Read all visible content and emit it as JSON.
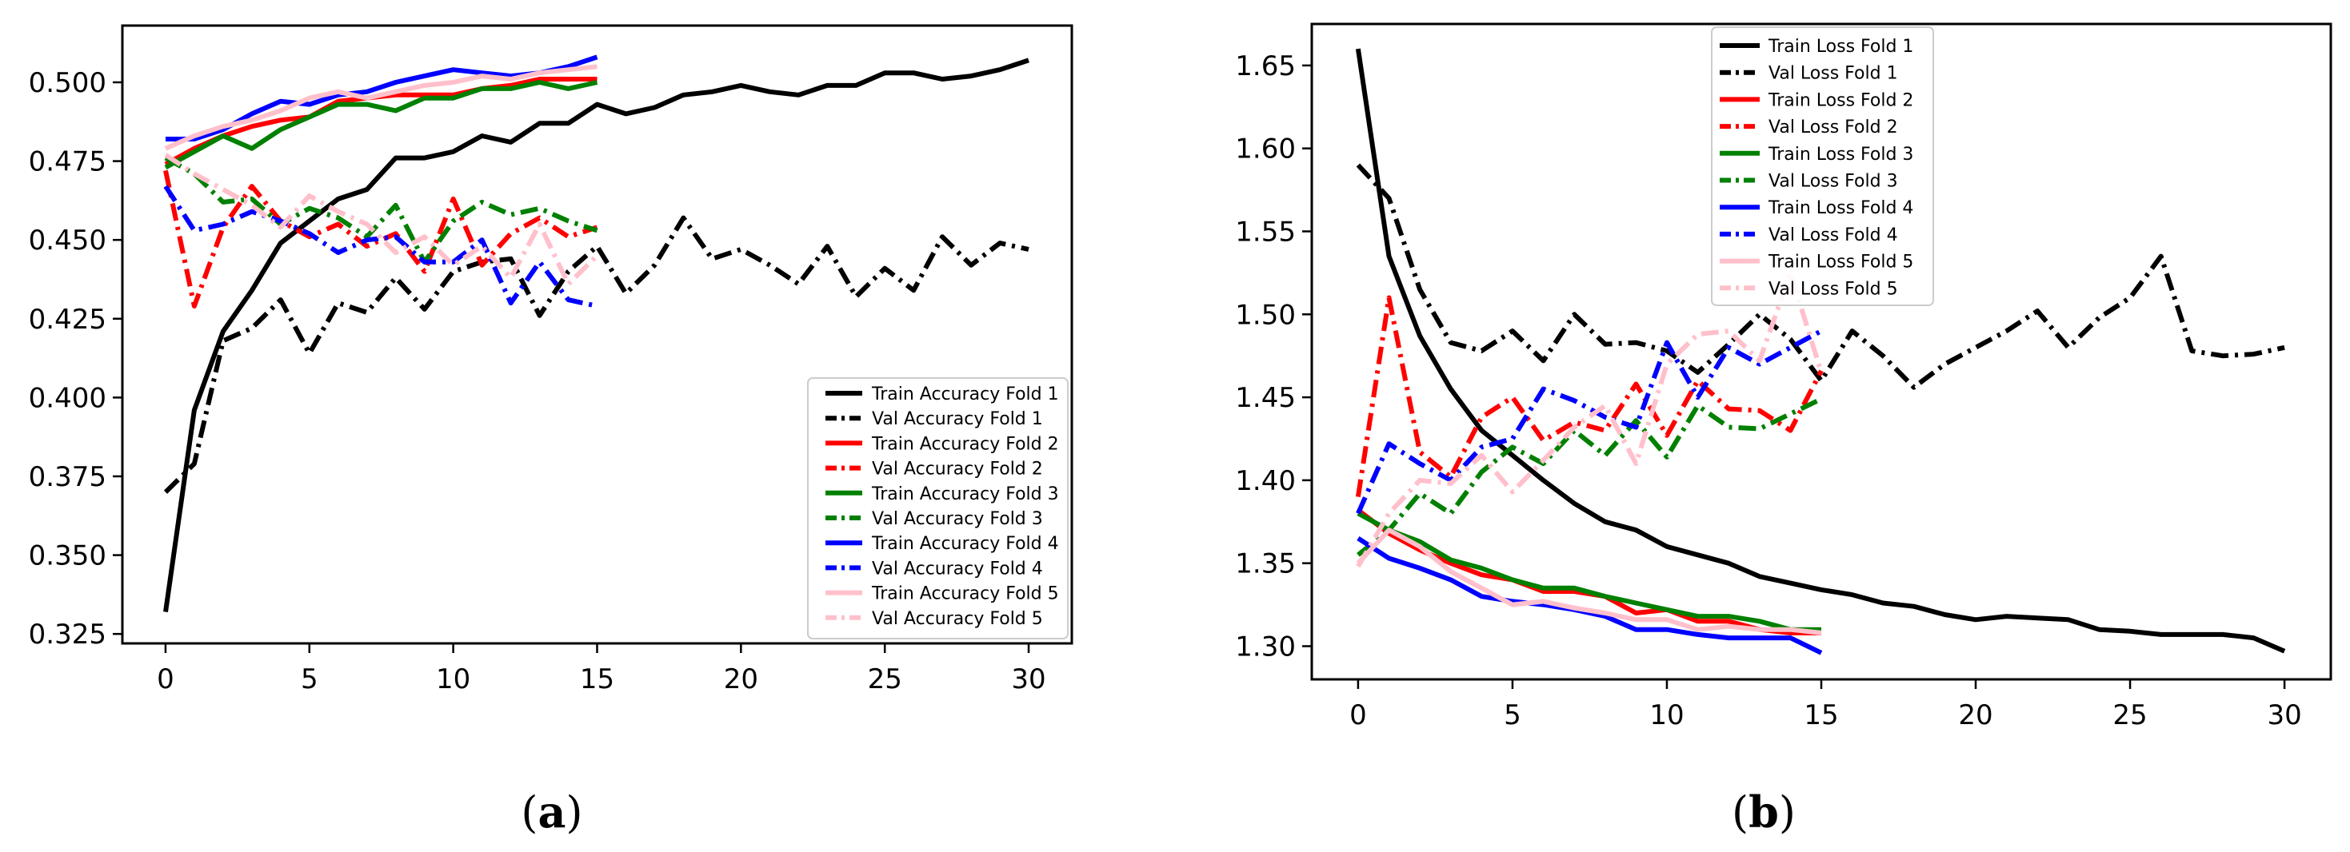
{
  "chart_data": [
    {
      "type": "line",
      "panel": "a",
      "caption_letter": "a",
      "caption_open": "(",
      "caption_close": ")",
      "title": "",
      "xlabel": "",
      "ylabel": "",
      "xlim": [
        -1.5,
        31.5
      ],
      "ylim": [
        0.322,
        0.518
      ],
      "xticks": [
        0,
        5,
        10,
        15,
        20,
        25,
        30
      ],
      "xtick_labels": [
        "0",
        "5",
        "10",
        "15",
        "20",
        "25",
        "30"
      ],
      "yticks": [
        0.325,
        0.35,
        0.375,
        0.4,
        0.425,
        0.45,
        0.475,
        0.5
      ],
      "ytick_labels": [
        "0.325",
        "0.350",
        "0.375",
        "0.400",
        "0.425",
        "0.450",
        "0.475",
        "0.500"
      ],
      "legend_position": "lower-right",
      "series": [
        {
          "name": "Train Accuracy Fold 1",
          "color": "#000000",
          "style": "solid",
          "x": [
            0,
            1,
            2,
            3,
            4,
            5,
            6,
            7,
            8,
            9,
            10,
            11,
            12,
            13,
            14,
            15,
            16,
            17,
            18,
            19,
            20,
            21,
            22,
            23,
            24,
            25,
            26,
            27,
            28,
            29,
            30
          ],
          "values": [
            0.332,
            0.396,
            0.421,
            0.434,
            0.449,
            0.456,
            0.463,
            0.466,
            0.476,
            0.476,
            0.478,
            0.483,
            0.481,
            0.487,
            0.487,
            0.493,
            0.49,
            0.492,
            0.496,
            0.497,
            0.499,
            0.497,
            0.496,
            0.499,
            0.499,
            0.503,
            0.503,
            0.501,
            0.502,
            0.504,
            0.507
          ]
        },
        {
          "name": "Val Accuracy Fold 1",
          "color": "#000000",
          "style": "dashdot",
          "x": [
            0,
            1,
            2,
            3,
            4,
            5,
            6,
            7,
            8,
            9,
            10,
            11,
            12,
            13,
            14,
            15,
            16,
            17,
            18,
            19,
            20,
            21,
            22,
            23,
            24,
            25,
            26,
            27,
            28,
            29,
            30
          ],
          "values": [
            0.37,
            0.379,
            0.418,
            0.422,
            0.431,
            0.414,
            0.43,
            0.427,
            0.438,
            0.428,
            0.44,
            0.443,
            0.444,
            0.426,
            0.44,
            0.448,
            0.433,
            0.442,
            0.457,
            0.444,
            0.447,
            0.442,
            0.436,
            0.448,
            0.432,
            0.441,
            0.434,
            0.451,
            0.442,
            0.449,
            0.447
          ]
        },
        {
          "name": "Train Accuracy Fold 2",
          "color": "#ff0000",
          "style": "solid",
          "x": [
            0,
            1,
            2,
            3,
            4,
            5,
            6,
            7,
            8,
            9,
            10,
            11,
            12,
            13,
            14,
            15
          ],
          "values": [
            0.474,
            0.479,
            0.483,
            0.486,
            0.488,
            0.489,
            0.494,
            0.495,
            0.496,
            0.496,
            0.496,
            0.498,
            0.499,
            0.501,
            0.501,
            0.501
          ]
        },
        {
          "name": "Val Accuracy Fold 2",
          "color": "#ff0000",
          "style": "dashdot",
          "x": [
            0,
            1,
            2,
            3,
            4,
            5,
            6,
            7,
            8,
            9,
            10,
            11,
            12,
            13,
            14,
            15
          ],
          "values": [
            0.472,
            0.429,
            0.454,
            0.467,
            0.456,
            0.451,
            0.455,
            0.448,
            0.452,
            0.44,
            0.463,
            0.442,
            0.452,
            0.457,
            0.451,
            0.454
          ]
        },
        {
          "name": "Train Accuracy Fold 3",
          "color": "#008000",
          "style": "solid",
          "x": [
            0,
            1,
            2,
            3,
            4,
            5,
            6,
            7,
            8,
            9,
            10,
            11,
            12,
            13,
            14,
            15
          ],
          "values": [
            0.473,
            0.478,
            0.483,
            0.479,
            0.485,
            0.489,
            0.493,
            0.493,
            0.491,
            0.495,
            0.495,
            0.498,
            0.498,
            0.5,
            0.498,
            0.5
          ]
        },
        {
          "name": "Val Accuracy Fold 3",
          "color": "#008000",
          "style": "dashdot",
          "x": [
            0,
            1,
            2,
            3,
            4,
            5,
            6,
            7,
            8,
            9,
            10,
            11,
            12,
            13,
            14,
            15
          ],
          "values": [
            0.476,
            0.471,
            0.462,
            0.463,
            0.455,
            0.46,
            0.457,
            0.451,
            0.461,
            0.443,
            0.456,
            0.462,
            0.458,
            0.46,
            0.456,
            0.453
          ]
        },
        {
          "name": "Train Accuracy Fold 4",
          "color": "#0000ff",
          "style": "solid",
          "x": [
            0,
            1,
            2,
            3,
            4,
            5,
            6,
            7,
            8,
            9,
            10,
            11,
            12,
            13,
            14,
            15
          ],
          "values": [
            0.482,
            0.482,
            0.485,
            0.49,
            0.494,
            0.493,
            0.496,
            0.497,
            0.5,
            0.502,
            0.504,
            0.503,
            0.502,
            0.503,
            0.505,
            0.508
          ]
        },
        {
          "name": "Val Accuracy Fold 4",
          "color": "#0000ff",
          "style": "dashdot",
          "x": [
            0,
            1,
            2,
            3,
            4,
            5,
            6,
            7,
            8,
            9,
            10,
            11,
            12,
            13,
            14,
            15
          ],
          "values": [
            0.467,
            0.453,
            0.455,
            0.459,
            0.456,
            0.452,
            0.446,
            0.45,
            0.451,
            0.443,
            0.443,
            0.45,
            0.43,
            0.443,
            0.431,
            0.429
          ]
        },
        {
          "name": "Train Accuracy Fold 5",
          "color": "#ffc0cb",
          "style": "solid",
          "x": [
            0,
            1,
            2,
            3,
            4,
            5,
            6,
            7,
            8,
            9,
            10,
            11,
            12,
            13,
            14,
            15
          ],
          "values": [
            0.479,
            0.483,
            0.486,
            0.488,
            0.491,
            0.495,
            0.497,
            0.495,
            0.497,
            0.499,
            0.5,
            0.502,
            0.501,
            0.503,
            0.504,
            0.505
          ]
        },
        {
          "name": "Val Accuracy Fold 5",
          "color": "#ffc0cb",
          "style": "dashdot",
          "x": [
            0,
            1,
            2,
            3,
            4,
            5,
            6,
            7,
            8,
            9,
            10,
            11,
            12,
            13,
            14,
            15
          ],
          "values": [
            0.477,
            0.471,
            0.466,
            0.461,
            0.454,
            0.464,
            0.459,
            0.455,
            0.446,
            0.451,
            0.442,
            0.448,
            0.438,
            0.455,
            0.436,
            0.445
          ]
        }
      ]
    },
    {
      "type": "line",
      "panel": "b",
      "caption_letter": "b",
      "caption_open": "(",
      "caption_close": ")",
      "title": "",
      "xlabel": "",
      "ylabel": "",
      "xlim": [
        -1.5,
        31.5
      ],
      "ylim": [
        1.28,
        1.675
      ],
      "xticks": [
        0,
        5,
        10,
        15,
        20,
        25,
        30
      ],
      "xtick_labels": [
        "0",
        "5",
        "10",
        "15",
        "20",
        "25",
        "30"
      ],
      "yticks": [
        1.3,
        1.35,
        1.4,
        1.45,
        1.5,
        1.55,
        1.6,
        1.65
      ],
      "ytick_labels": [
        "1.30",
        "1.35",
        "1.40",
        "1.45",
        "1.50",
        "1.55",
        "1.60",
        "1.65"
      ],
      "legend_position": "upper-center",
      "series": [
        {
          "name": "Train Loss Fold 1",
          "color": "#000000",
          "style": "solid",
          "x": [
            0,
            1,
            2,
            3,
            4,
            5,
            6,
            7,
            8,
            9,
            10,
            11,
            12,
            13,
            14,
            15,
            16,
            17,
            18,
            19,
            20,
            21,
            22,
            23,
            24,
            25,
            26,
            27,
            28,
            29,
            30
          ],
          "values": [
            1.66,
            1.535,
            1.487,
            1.455,
            1.43,
            1.415,
            1.4,
            1.386,
            1.375,
            1.37,
            1.36,
            1.355,
            1.35,
            1.342,
            1.338,
            1.334,
            1.331,
            1.326,
            1.324,
            1.319,
            1.316,
            1.318,
            1.317,
            1.316,
            1.31,
            1.309,
            1.307,
            1.307,
            1.307,
            1.305,
            1.297
          ]
        },
        {
          "name": "Val Loss Fold 1",
          "color": "#000000",
          "style": "dashdot",
          "x": [
            0,
            1,
            2,
            3,
            4,
            5,
            6,
            7,
            8,
            9,
            10,
            11,
            12,
            13,
            14,
            15,
            16,
            17,
            18,
            19,
            20,
            21,
            22,
            23,
            24,
            25,
            26,
            27,
            28,
            29,
            30
          ],
          "values": [
            1.59,
            1.57,
            1.515,
            1.483,
            1.478,
            1.49,
            1.472,
            1.5,
            1.482,
            1.483,
            1.478,
            1.465,
            1.482,
            1.5,
            1.485,
            1.46,
            1.49,
            1.475,
            1.456,
            1.47,
            1.48,
            1.49,
            1.502,
            1.48,
            1.498,
            1.51,
            1.535,
            1.478,
            1.475,
            1.476,
            1.48
          ]
        },
        {
          "name": "Train Loss Fold 2",
          "color": "#ff0000",
          "style": "solid",
          "x": [
            0,
            1,
            2,
            3,
            4,
            5,
            6,
            7,
            8,
            9,
            10,
            11,
            12,
            13,
            14,
            15
          ],
          "values": [
            1.382,
            1.368,
            1.358,
            1.35,
            1.343,
            1.34,
            1.333,
            1.333,
            1.33,
            1.32,
            1.322,
            1.315,
            1.315,
            1.31,
            1.308,
            1.308
          ]
        },
        {
          "name": "Val Loss Fold 2",
          "color": "#ff0000",
          "style": "dashdot",
          "x": [
            0,
            1,
            2,
            3,
            4,
            5,
            6,
            7,
            8,
            9,
            10,
            11,
            12,
            13,
            14,
            15
          ],
          "values": [
            1.39,
            1.51,
            1.417,
            1.402,
            1.438,
            1.45,
            1.424,
            1.435,
            1.43,
            1.458,
            1.427,
            1.46,
            1.443,
            1.442,
            1.43,
            1.466
          ]
        },
        {
          "name": "Train Loss Fold 3",
          "color": "#008000",
          "style": "solid",
          "x": [
            0,
            1,
            2,
            3,
            4,
            5,
            6,
            7,
            8,
            9,
            10,
            11,
            12,
            13,
            14,
            15
          ],
          "values": [
            1.38,
            1.37,
            1.363,
            1.352,
            1.347,
            1.34,
            1.335,
            1.335,
            1.33,
            1.326,
            1.322,
            1.318,
            1.318,
            1.315,
            1.31,
            1.31
          ]
        },
        {
          "name": "Val Loss Fold 3",
          "color": "#008000",
          "style": "dashdot",
          "x": [
            0,
            1,
            2,
            3,
            4,
            5,
            6,
            7,
            8,
            9,
            10,
            11,
            12,
            13,
            14,
            15
          ],
          "values": [
            1.355,
            1.37,
            1.392,
            1.38,
            1.405,
            1.42,
            1.41,
            1.43,
            1.415,
            1.436,
            1.414,
            1.445,
            1.432,
            1.431,
            1.44,
            1.449
          ]
        },
        {
          "name": "Train Loss Fold 4",
          "color": "#0000ff",
          "style": "solid",
          "x": [
            0,
            1,
            2,
            3,
            4,
            5,
            6,
            7,
            8,
            9,
            10,
            11,
            12,
            13,
            14,
            15
          ],
          "values": [
            1.365,
            1.353,
            1.347,
            1.34,
            1.33,
            1.327,
            1.325,
            1.322,
            1.318,
            1.31,
            1.31,
            1.307,
            1.305,
            1.305,
            1.305,
            1.296
          ]
        },
        {
          "name": "Val Loss Fold 4",
          "color": "#0000ff",
          "style": "dashdot",
          "x": [
            0,
            1,
            2,
            3,
            4,
            5,
            6,
            7,
            8,
            9,
            10,
            11,
            12,
            13,
            14,
            15
          ],
          "values": [
            1.38,
            1.422,
            1.41,
            1.4,
            1.42,
            1.425,
            1.455,
            1.448,
            1.438,
            1.432,
            1.483,
            1.45,
            1.48,
            1.47,
            1.48,
            1.49
          ]
        },
        {
          "name": "Train Loss Fold 5",
          "color": "#ffc0cb",
          "style": "solid",
          "x": [
            0,
            1,
            2,
            3,
            4,
            5,
            6,
            7,
            8,
            9,
            10,
            11,
            12,
            13,
            14,
            15
          ],
          "values": [
            1.35,
            1.37,
            1.36,
            1.345,
            1.335,
            1.325,
            1.327,
            1.323,
            1.32,
            1.316,
            1.316,
            1.31,
            1.312,
            1.31,
            1.31,
            1.308
          ]
        },
        {
          "name": "Val Loss Fold 5",
          "color": "#ffc0cb",
          "style": "dashdot",
          "x": [
            0,
            1,
            2,
            3,
            4,
            5,
            6,
            7,
            8,
            9,
            10,
            11,
            12,
            13,
            14,
            15
          ],
          "values": [
            1.348,
            1.38,
            1.4,
            1.398,
            1.415,
            1.393,
            1.412,
            1.432,
            1.445,
            1.41,
            1.47,
            1.488,
            1.49,
            1.472,
            1.525,
            1.465
          ]
        }
      ]
    }
  ]
}
